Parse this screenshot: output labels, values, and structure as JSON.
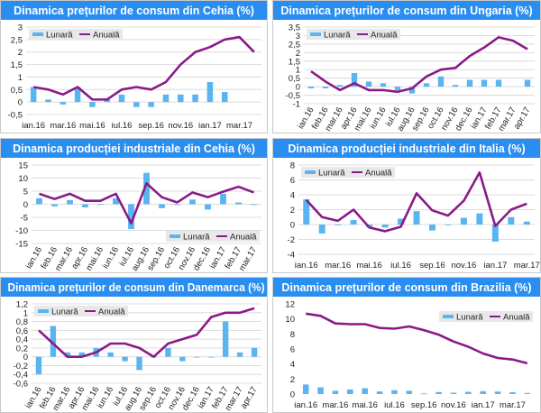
{
  "colors": {
    "monthly": "#5ab4f0",
    "annual": "#8a1a88",
    "title_bar": "#2a8ef0",
    "grid": "#dcdcdc"
  },
  "legend": {
    "monthly": "Lunară",
    "annual": "Anuală"
  },
  "chart_data": [
    {
      "type": "bar+line",
      "title": "Dinamica prețurilor de consum din Cehia (%)",
      "categories": [
        "ian.16",
        "feb.16",
        "mar.16",
        "apr.16",
        "mai.16",
        "iun.16",
        "iul.16",
        "aug.16",
        "sep.16",
        "oct.16",
        "nov.16",
        "dec.16",
        "ian.17",
        "feb.17",
        "mar.17",
        "apr.17"
      ],
      "label_every": 2,
      "labels_rotated": false,
      "ylim": [
        -0.5,
        3
      ],
      "ystep": 0.5,
      "grid": true,
      "legend_position": "top-left",
      "series": [
        {
          "name": "Lunară",
          "type": "bar",
          "values": [
            0.6,
            0.1,
            -0.1,
            0.6,
            -0.2,
            0.1,
            0.3,
            -0.2,
            -0.2,
            0.3,
            0.3,
            0.3,
            0.8,
            0.4,
            null,
            null
          ]
        },
        {
          "name": "Anuală",
          "type": "line",
          "values": [
            0.6,
            0.5,
            0.3,
            0.6,
            0.1,
            0.1,
            0.5,
            0.6,
            0.5,
            0.8,
            1.5,
            2.0,
            2.2,
            2.5,
            2.6,
            2.0
          ]
        }
      ]
    },
    {
      "type": "bar+line",
      "title": "Dinamica prețurilor de consum din Ungaria (%)",
      "categories": [
        "ian.16",
        "feb.16",
        "mar.16",
        "apr.16",
        "mai.16",
        "iun.16",
        "iul.16",
        "aug.16",
        "sep.16",
        "oct.16",
        "nov.16",
        "dec.16",
        "ian.17",
        "feb.17",
        "mar.17",
        "apr.17"
      ],
      "label_every": 1,
      "labels_rotated": true,
      "ylim": [
        -1,
        3.5
      ],
      "ystep": 0.5,
      "grid": true,
      "legend_position": "top-left",
      "series": [
        {
          "name": "Lunară",
          "type": "bar",
          "values": [
            -0.1,
            -0.1,
            0.1,
            0.8,
            0.3,
            0.2,
            -0.2,
            -0.4,
            0.2,
            0.6,
            0.1,
            0.4,
            0.4,
            0.4,
            null,
            0.4
          ]
        },
        {
          "name": "Anuală",
          "type": "line",
          "values": [
            0.9,
            0.3,
            -0.2,
            0.2,
            -0.2,
            -0.2,
            -0.3,
            -0.1,
            0.6,
            1.0,
            1.1,
            1.8,
            2.3,
            2.9,
            2.7,
            2.2
          ]
        }
      ]
    },
    {
      "type": "bar+line",
      "title": "Dinamica producției industriale din Cehia (%)",
      "categories": [
        "ian.16",
        "feb.16",
        "mar.16",
        "apr.16",
        "mai.16",
        "iun.16",
        "iul.16",
        "aug.16",
        "sep.16",
        "oct.16",
        "nov.16",
        "dec.16",
        "ian.17",
        "feb.17",
        "mar.17"
      ],
      "label_every": 1,
      "labels_rotated": true,
      "ylim": [
        -15,
        15
      ],
      "ystep": 5,
      "grid": true,
      "legend_position": "bottom-right",
      "series": [
        {
          "name": "Lunară",
          "type": "bar",
          "values": [
            2.3,
            -0.8,
            1.6,
            -1.2,
            0,
            2.3,
            -9.5,
            12,
            -1.5,
            -0.2,
            1.8,
            -2,
            4,
            0.7,
            -0.3
          ]
        },
        {
          "name": "Anuală",
          "type": "line",
          "values": [
            4,
            2,
            4,
            1.3,
            1.3,
            4,
            -7.3,
            8,
            2.7,
            0.7,
            4.5,
            2.7,
            4.8,
            6.7,
            4.5
          ]
        }
      ]
    },
    {
      "type": "bar+line",
      "title": "Dinamica producției industriale din Italia (%)",
      "categories": [
        "ian.16",
        "feb.16",
        "mar.16",
        "apr.16",
        "mai.16",
        "iun.16",
        "iul.16",
        "aug.16",
        "sep.16",
        "oct.16",
        "nov.16",
        "dec.16",
        "ian.17",
        "feb.17",
        "mar.17"
      ],
      "label_every": 2,
      "labels_rotated": false,
      "ylim": [
        -4,
        8
      ],
      "ystep": 2,
      "grid": true,
      "legend_position": "top-left",
      "series": [
        {
          "name": "Lunară",
          "type": "bar",
          "values": [
            3.4,
            -1.2,
            -0.1,
            0.6,
            -0.4,
            -0.4,
            0.8,
            1.8,
            -0.8,
            0,
            0.9,
            1.5,
            -2.3,
            1.0,
            0.4
          ]
        },
        {
          "name": "Anuală",
          "type": "line",
          "values": [
            3.3,
            1.0,
            0.5,
            2.0,
            -0.4,
            -0.9,
            -0.3,
            4.2,
            1.9,
            1.2,
            3.2,
            7.0,
            -0.2,
            2.0,
            2.8
          ]
        }
      ]
    },
    {
      "type": "bar+line",
      "title": "Dinamica prețurilor de consum din Danemarca (%)",
      "categories": [
        "ian.16",
        "feb.16",
        "mar.16",
        "apr.16",
        "mai.16",
        "iun.16",
        "iul.16",
        "aug.16",
        "sep.16",
        "oct.16",
        "nov.16",
        "dec.16",
        "ian.17",
        "feb.17",
        "mar.17",
        "apr.17"
      ],
      "label_every": 1,
      "labels_rotated": true,
      "ylim": [
        -0.6,
        1.2
      ],
      "ystep": 0.2,
      "grid": true,
      "legend_position": "top-left",
      "series": [
        {
          "name": "Lunară",
          "type": "bar",
          "values": [
            -0.4,
            0.7,
            0.1,
            0.1,
            0.2,
            0.1,
            -0.1,
            -0.3,
            0,
            0.2,
            -0.1,
            0,
            0,
            0.8,
            0.1,
            0.2
          ]
        },
        {
          "name": "Anuală",
          "type": "line",
          "values": [
            0.6,
            0.3,
            0,
            0,
            0.1,
            0.3,
            0.3,
            0.2,
            0,
            0.3,
            0.4,
            0.5,
            0.9,
            1.0,
            1.0,
            1.1
          ]
        }
      ]
    },
    {
      "type": "bar+line",
      "title": "Dinamica prețurilor de consum din Brazilia (%)",
      "categories": [
        "ian.16",
        "feb.16",
        "mar.16",
        "apr.16",
        "mai.16",
        "iun.16",
        "iul.16",
        "aug.16",
        "sep.16",
        "oct.16",
        "nov.16",
        "dec.16",
        "ian.17",
        "feb.17",
        "mar.17",
        "apr.17"
      ],
      "label_every": 2,
      "labels_rotated": false,
      "ylim": [
        0,
        12
      ],
      "ystep": 2,
      "grid": false,
      "legend_position": "top-right",
      "series": [
        {
          "name": "Lunară",
          "type": "bar",
          "values": [
            1.27,
            0.9,
            0.43,
            0.61,
            0.78,
            0.35,
            0.52,
            0.44,
            0.08,
            0.26,
            0.18,
            0.3,
            0.38,
            0.33,
            0.25,
            0.14
          ]
        },
        {
          "name": "Anuală",
          "type": "line",
          "values": [
            10.7,
            10.4,
            9.4,
            9.3,
            9.3,
            8.8,
            8.7,
            9.0,
            8.5,
            7.9,
            7.0,
            6.3,
            5.4,
            4.8,
            4.6,
            4.1
          ]
        }
      ]
    }
  ]
}
